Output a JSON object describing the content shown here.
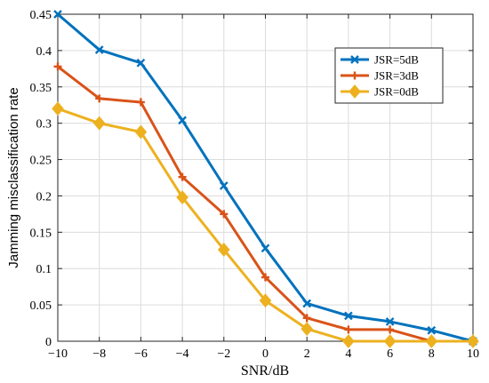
{
  "chart_data": {
    "type": "line",
    "title": "",
    "xlabel": "SNR/dB",
    "ylabel": "Jamming misclassification rate",
    "x": [
      -10,
      -8,
      -6,
      -4,
      -2,
      0,
      2,
      4,
      6,
      8,
      10
    ],
    "xlim": [
      -10,
      10
    ],
    "ylim": [
      0,
      0.45
    ],
    "xticks": [
      -10,
      -8,
      -6,
      -4,
      -2,
      0,
      2,
      4,
      6,
      8,
      10
    ],
    "xtick_labels": [
      "−10",
      "−8",
      "−6",
      "−4",
      "−2",
      "0",
      "2",
      "4",
      "6",
      "8",
      "10"
    ],
    "yticks": [
      0,
      0.05,
      0.1,
      0.15,
      0.2,
      0.25,
      0.3,
      0.35,
      0.4,
      0.45
    ],
    "ytick_labels": [
      "0",
      "0.05",
      "0.1",
      "0.15",
      "0.2",
      "0.25",
      "0.3",
      "0.35",
      "0.4",
      "0.45"
    ],
    "grid": true,
    "legend_position": "top-right",
    "series": [
      {
        "name": "JSR=5dB",
        "color": "#0072BD",
        "marker": "x",
        "values": [
          0.45,
          0.401,
          0.383,
          0.304,
          0.214,
          0.128,
          0.052,
          0.035,
          0.027,
          0.015,
          0.0
        ]
      },
      {
        "name": "JSR=3dB",
        "color": "#D95319",
        "marker": "plus",
        "values": [
          0.378,
          0.334,
          0.329,
          0.226,
          0.175,
          0.088,
          0.032,
          0.016,
          0.016,
          0.0,
          0.0
        ]
      },
      {
        "name": "JSR=0dB",
        "color": "#EDB120",
        "marker": "diamond",
        "values": [
          0.32,
          0.3,
          0.288,
          0.198,
          0.126,
          0.056,
          0.017,
          0.0,
          0.0,
          0.0,
          0.0
        ]
      }
    ]
  }
}
